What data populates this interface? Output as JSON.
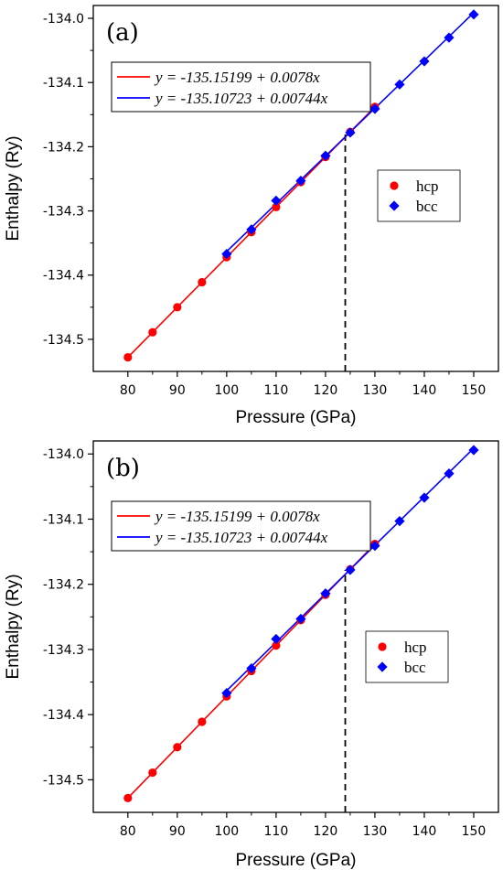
{
  "chart_data": [
    {
      "type": "scatter",
      "panel_label": "(a)",
      "xlabel": "Pressure (GPa)",
      "ylabel": "Enthalpy (Ry)",
      "xlim": [
        73,
        155
      ],
      "ylim": [
        -134.55,
        -133.98
      ],
      "xticks": [
        80,
        90,
        100,
        110,
        120,
        130,
        140,
        150
      ],
      "yticks": [
        -134.5,
        -134.4,
        -134.3,
        -134.2,
        -134.1,
        -134.0
      ],
      "ytick_labels": [
        "-134.5",
        "-134.4",
        "-134.3",
        "-134.2",
        "-134.1",
        "-134.0"
      ],
      "series": [
        {
          "name": "hcp",
          "marker": "circle",
          "color": "#ff0000",
          "x": [
            80,
            85,
            90,
            95,
            100,
            105,
            110,
            115,
            120,
            125,
            130
          ],
          "y": [
            -134.528,
            -134.489,
            -134.45,
            -134.411,
            -134.372,
            -134.333,
            -134.294,
            -134.255,
            -134.216,
            -134.177,
            -134.138
          ]
        },
        {
          "name": "bcc",
          "marker": "diamond",
          "color": "#0000ff",
          "x": [
            100,
            105,
            110,
            115,
            120,
            125,
            130,
            135,
            140,
            145,
            150
          ],
          "y": [
            -134.367,
            -134.329,
            -134.284,
            -134.253,
            -134.214,
            -134.178,
            -134.141,
            -134.103,
            -134.067,
            -134.03,
            -133.994
          ]
        }
      ],
      "fits": [
        {
          "label": "y = -135.15199 + 0.0078x",
          "color": "#ff0000",
          "intercept": -135.15199,
          "slope": 0.0078,
          "x_range": [
            80,
            130
          ]
        },
        {
          "label": "y = -135.10723 + 0.00744x",
          "color": "#0000ff",
          "intercept": -135.10723,
          "slope": 0.00744,
          "x_range": [
            100,
            150
          ]
        }
      ],
      "vline": {
        "x": 124,
        "y_from": -134.55,
        "y_to": -134.178,
        "style": "dashed",
        "color": "#000000"
      },
      "legend_position": "right-middle",
      "grid": false
    },
    {
      "type": "scatter",
      "panel_label": "(b)",
      "xlabel": "Pressure (GPa)",
      "ylabel": "Enthalpy (Ry)",
      "xlim": [
        73,
        155
      ],
      "ylim": [
        -134.55,
        -133.98
      ],
      "xticks": [
        80,
        90,
        100,
        110,
        120,
        130,
        140,
        150
      ],
      "yticks": [
        -134.5,
        -134.4,
        -134.3,
        -134.2,
        -134.1,
        -134.0
      ],
      "ytick_labels": [
        "-134.5",
        "-134.4",
        "-134.3",
        "-134.2",
        "-134.1",
        "-134.0"
      ],
      "series": [
        {
          "name": "hcp",
          "marker": "circle",
          "color": "#ff0000",
          "x": [
            80,
            85,
            90,
            95,
            100,
            105,
            110,
            115,
            120,
            125,
            130
          ],
          "y": [
            -134.528,
            -134.489,
            -134.45,
            -134.411,
            -134.372,
            -134.333,
            -134.294,
            -134.255,
            -134.216,
            -134.177,
            -134.138
          ]
        },
        {
          "name": "bcc",
          "marker": "diamond",
          "color": "#0000ff",
          "x": [
            100,
            105,
            110,
            115,
            120,
            125,
            130,
            135,
            140,
            145,
            150
          ],
          "y": [
            -134.367,
            -134.329,
            -134.284,
            -134.253,
            -134.214,
            -134.178,
            -134.141,
            -134.103,
            -134.067,
            -134.03,
            -133.994
          ]
        }
      ],
      "fits": [
        {
          "label": "y = -135.15199 + 0.0078x",
          "color": "#ff0000",
          "intercept": -135.15199,
          "slope": 0.0078,
          "x_range": [
            80,
            130
          ]
        },
        {
          "label": "y = -135.10723 + 0.00744x",
          "color": "#0000ff",
          "intercept": -135.10723,
          "slope": 0.00744,
          "x_range": [
            100,
            150
          ]
        }
      ],
      "vline": {
        "x": 124,
        "y_from": -134.55,
        "y_to": -134.178,
        "style": "dashed",
        "color": "#000000"
      },
      "legend_position": "right-middle",
      "grid": false
    }
  ]
}
